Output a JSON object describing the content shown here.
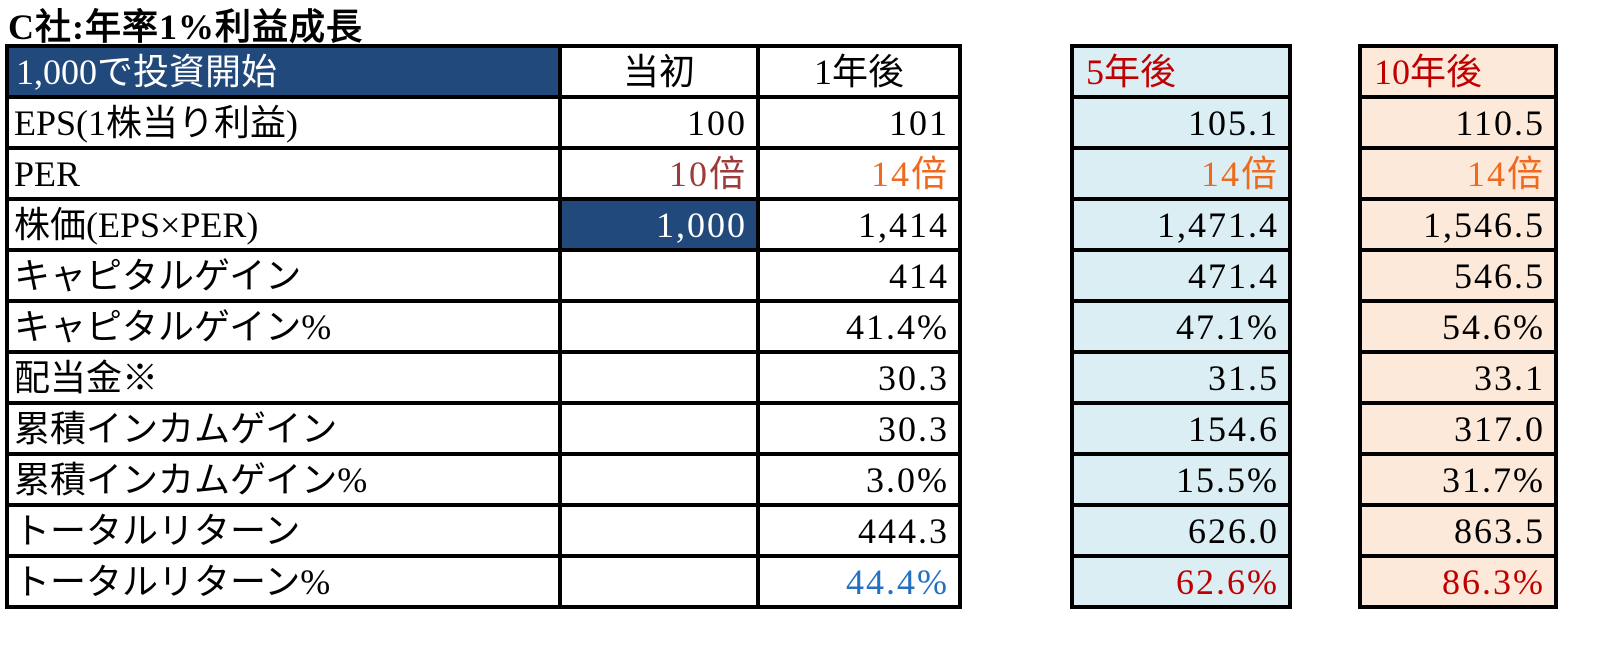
{
  "title": "C社:年率1%利益成長",
  "chart_data": {
    "type": "table",
    "title": "C社:年率1%利益成長",
    "corner_label": "1,000で投資開始",
    "columns": [
      "当初",
      "1年後",
      "5年後",
      "10年後"
    ],
    "rows": [
      {
        "label": "EPS(1株当り利益)",
        "values": [
          "100",
          "101",
          "105.1",
          "110.5"
        ]
      },
      {
        "label": "PER",
        "values": [
          "10倍",
          "14倍",
          "14倍",
          "14倍"
        ]
      },
      {
        "label": "株価(EPS×PER)",
        "values": [
          "1,000",
          "1,414",
          "1,471.4",
          "1,546.5"
        ]
      },
      {
        "label": "キャピタルゲイン",
        "values": [
          "",
          "414",
          "471.4",
          "546.5"
        ]
      },
      {
        "label": "キャピタルゲイン%",
        "values": [
          "",
          "41.4%",
          "47.1%",
          "54.6%"
        ]
      },
      {
        "label": "配当金※",
        "values": [
          "",
          "30.3",
          "31.5",
          "33.1"
        ]
      },
      {
        "label": "累積インカムゲイン",
        "values": [
          "",
          "30.3",
          "154.6",
          "317.0"
        ]
      },
      {
        "label": "累積インカムゲイン%",
        "values": [
          "",
          "3.0%",
          "15.5%",
          "31.7%"
        ]
      },
      {
        "label": "トータルリターン",
        "values": [
          "",
          "444.3",
          "626.0",
          "863.5"
        ]
      },
      {
        "label": "トータルリターン%",
        "values": [
          "",
          "44.4%",
          "62.6%",
          "86.3%"
        ]
      }
    ],
    "cell_styles": {
      "PER": [
        "darkred",
        "orange",
        "orange",
        "orange"
      ],
      "株価(EPS×PER)": [
        "navy-fill",
        "",
        "",
        ""
      ],
      "トータルリターン%": [
        "",
        "blue",
        "red",
        "red"
      ]
    },
    "colors": {
      "navy": "#21497B",
      "light_blue": "#DAEEF3",
      "peach": "#FDE9D9",
      "red": "#C00000",
      "dark_red": "#9E3A3A",
      "orange": "#ED6A1E",
      "blue": "#2471C2",
      "border": "#000000"
    },
    "layout_hints": {
      "header_row": true,
      "value_alignment": "right",
      "grid": "thick-black"
    }
  }
}
